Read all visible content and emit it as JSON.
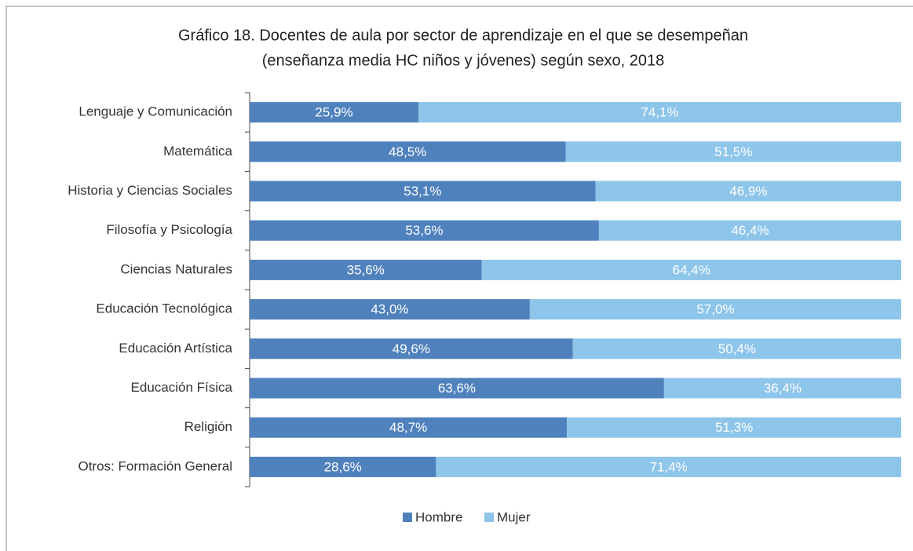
{
  "chart_data": {
    "type": "stacked_bar_horizontal",
    "title": "Gráfico 18. Docentes de aula por sector de aprendizaje en el que se desempeñan",
    "subtitle": "(enseñanza media HC niños y jóvenes) según sexo, 2018",
    "categories": [
      "Lenguaje y Comunicación",
      "Matemática",
      "Historia y Ciencias Sociales",
      "Filosofía y Psicología",
      "Ciencias Naturales",
      "Educación Tecnológica",
      "Educación Artística",
      "Educación Física",
      "Religión",
      "Otros: Formación General"
    ],
    "series": [
      {
        "name": "Hombre",
        "color": "#4f81bd",
        "values": [
          25.9,
          48.5,
          53.1,
          53.6,
          35.6,
          43.0,
          49.6,
          63.6,
          48.7,
          28.6
        ],
        "value_labels": [
          "25,9%",
          "48,5%",
          "53,1%",
          "53,6%",
          "35,6%",
          "43,0%",
          "49,6%",
          "63,6%",
          "48,7%",
          "28,6%"
        ]
      },
      {
        "name": "Mujer",
        "color": "#8ec5ea",
        "values": [
          74.1,
          51.5,
          46.9,
          46.4,
          64.4,
          57.0,
          50.4,
          36.4,
          51.3,
          71.4
        ],
        "value_labels": [
          "74,1%",
          "51,5%",
          "46,9%",
          "46,4%",
          "64,4%",
          "57,0%",
          "50,4%",
          "36,4%",
          "51,3%",
          "71,4%"
        ]
      }
    ],
    "legend": "bottom"
  }
}
